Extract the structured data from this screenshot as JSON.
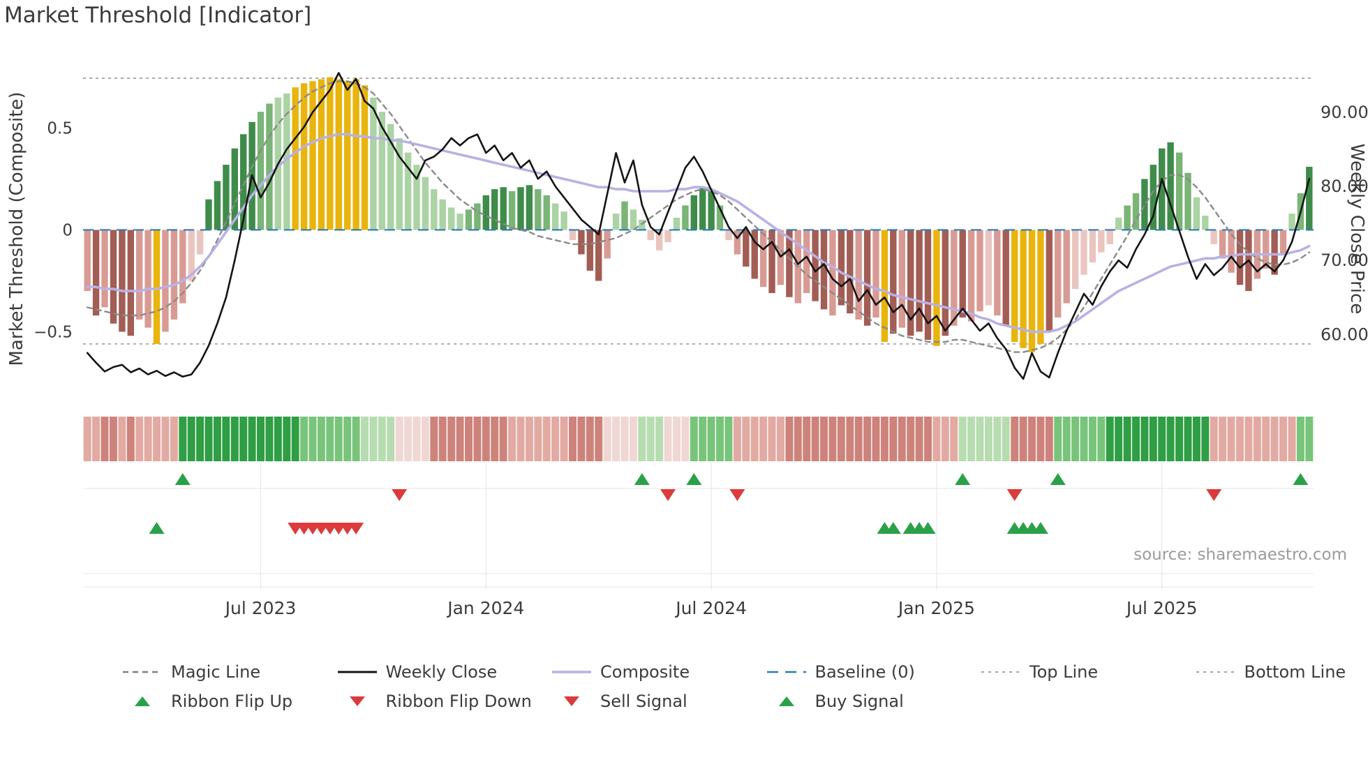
{
  "title": "Market Threshold [Indicator]",
  "source": "source: sharemaestro.com",
  "axes": {
    "left_label": "Market Threshold (Composite)",
    "right_label": "Weekly Close Price",
    "left_ticks": [
      {
        "value": 0.5,
        "label": "0.5"
      },
      {
        "value": 0.0,
        "label": "0"
      },
      {
        "value": -0.5,
        "label": "−0.5"
      }
    ],
    "right_ticks": [
      {
        "value": 90,
        "label": "90.00"
      },
      {
        "value": 80,
        "label": "80.00"
      },
      {
        "value": 70,
        "label": "70.00"
      },
      {
        "value": 60,
        "label": "60.00"
      }
    ]
  },
  "chart_data": {
    "type": "bar",
    "subtype": "weekly composite-indicator histogram with overlay lines, ribbon heatmap row and signal-marker rows",
    "title": "Market Threshold [Indicator]",
    "n_weeks": 142,
    "ylim_left": [
      -0.79,
      0.8
    ],
    "ylim_right": [
      52.4,
      96.1
    ],
    "baseline": 0,
    "top_line": 0.745,
    "bottom_line": -0.56,
    "x_ticks": [
      {
        "index": 20,
        "label": "Jul 2023"
      },
      {
        "index": 46,
        "label": "Jan 2024"
      },
      {
        "index": 72,
        "label": "Jul 2024"
      },
      {
        "index": 98,
        "label": "Jan 2025"
      },
      {
        "index": 124,
        "label": "Jul 2025"
      }
    ],
    "histogram": {
      "values": [
        -0.3,
        -0.42,
        -0.38,
        -0.46,
        -0.5,
        -0.52,
        -0.44,
        -0.48,
        -0.56,
        -0.5,
        -0.44,
        -0.36,
        -0.25,
        -0.12,
        0.15,
        0.24,
        0.32,
        0.4,
        0.47,
        0.53,
        0.58,
        0.62,
        0.65,
        0.67,
        0.7,
        0.72,
        0.73,
        0.74,
        0.75,
        0.74,
        0.73,
        0.74,
        0.71,
        0.65,
        0.58,
        0.52,
        0.45,
        0.38,
        0.32,
        0.26,
        0.2,
        0.15,
        0.11,
        0.08,
        0.1,
        0.13,
        0.17,
        0.2,
        0.21,
        0.19,
        0.21,
        0.22,
        0.2,
        0.17,
        0.13,
        0.09,
        -0.05,
        -0.12,
        -0.2,
        -0.25,
        -0.14,
        0.08,
        0.14,
        0.1,
        0.05,
        -0.05,
        -0.1,
        -0.06,
        0.06,
        0.12,
        0.17,
        0.21,
        0.19,
        0.12,
        -0.05,
        -0.12,
        -0.18,
        -0.24,
        -0.28,
        -0.31,
        -0.27,
        -0.33,
        -0.36,
        -0.31,
        -0.35,
        -0.39,
        -0.42,
        -0.37,
        -0.41,
        -0.44,
        -0.47,
        -0.43,
        -0.55,
        -0.51,
        -0.48,
        -0.52,
        -0.5,
        -0.54,
        -0.57,
        -0.52,
        -0.47,
        -0.43,
        -0.45,
        -0.4,
        -0.37,
        -0.42,
        -0.47,
        -0.55,
        -0.58,
        -0.6,
        -0.56,
        -0.5,
        -0.43,
        -0.36,
        -0.29,
        -0.22,
        -0.16,
        -0.11,
        -0.07,
        0.06,
        0.12,
        0.18,
        0.25,
        0.32,
        0.4,
        0.43,
        0.38,
        0.28,
        0.16,
        0.07,
        -0.07,
        -0.14,
        -0.21,
        -0.27,
        -0.3,
        -0.24,
        -0.19,
        -0.22,
        -0.12,
        0.08,
        0.18,
        0.31
      ],
      "colors": [
        "r1",
        "r2",
        "r1",
        "r2",
        "r2",
        "r2",
        "r1",
        "r1",
        "y",
        "r1",
        "r1",
        "r1",
        "r0",
        "r0",
        "g2",
        "g2",
        "g2",
        "g2",
        "g2",
        "g2",
        "g1",
        "g1",
        "g0",
        "g0",
        "y",
        "y",
        "y",
        "y",
        "y",
        "y",
        "y",
        "y",
        "y",
        "g0",
        "g0",
        "g0",
        "g0",
        "g0",
        "g0",
        "g0",
        "g0",
        "g0",
        "g0",
        "g0",
        "g1",
        "g1",
        "g2",
        "g2",
        "g2",
        "g1",
        "g2",
        "g2",
        "g1",
        "g1",
        "g0",
        "g0",
        "r0",
        "r2",
        "r2",
        "r2",
        "r1",
        "g0",
        "g1",
        "g0",
        "g0",
        "r0",
        "r0",
        "r0",
        "g0",
        "g1",
        "g2",
        "g2",
        "g2",
        "g1",
        "r0",
        "r1",
        "r2",
        "r2",
        "r1",
        "r2",
        "r1",
        "r2",
        "r1",
        "r1",
        "r2",
        "r2",
        "r1",
        "r2",
        "r2",
        "r1",
        "r2",
        "r1",
        "y",
        "r2",
        "r1",
        "r2",
        "r2",
        "r2",
        "y",
        "r2",
        "r1",
        "r2",
        "r1",
        "r1",
        "r0",
        "r1",
        "r2",
        "y",
        "y",
        "y",
        "y",
        "r2",
        "r1",
        "r1",
        "r0",
        "r0",
        "r0",
        "r0",
        "r0",
        "g0",
        "g1",
        "g1",
        "g2",
        "g2",
        "g2",
        "g2",
        "g1",
        "g1",
        "g0",
        "g0",
        "r0",
        "r1",
        "r1",
        "r2",
        "r2",
        "r1",
        "r1",
        "r2",
        "r1",
        "g0",
        "g1",
        "g2"
      ]
    },
    "series": [
      {
        "name": "Weekly Close",
        "axis": "right",
        "values": [
          57.5,
          56.2,
          55.0,
          55.6,
          55.9,
          54.9,
          55.4,
          54.6,
          55.1,
          54.4,
          54.9,
          54.3,
          54.6,
          56.2,
          58.5,
          61.5,
          65.0,
          70.0,
          75.5,
          81.5,
          78.5,
          80.5,
          83.0,
          85.0,
          86.5,
          88.0,
          90.0,
          91.5,
          93.0,
          95.3,
          93.0,
          94.5,
          91.5,
          90.5,
          88.0,
          86.0,
          84.0,
          82.5,
          81.0,
          83.5,
          84.0,
          85.0,
          86.5,
          85.5,
          86.5,
          87.0,
          84.5,
          85.5,
          83.5,
          84.5,
          82.5,
          83.5,
          81.0,
          82.0,
          80.0,
          78.5,
          77.0,
          75.5,
          74.5,
          73.5,
          79.0,
          84.5,
          80.5,
          83.5,
          77.5,
          74.5,
          73.5,
          76.5,
          79.5,
          82.5,
          84.0,
          82.0,
          79.5,
          77.0,
          74.5,
          73.0,
          74.5,
          72.5,
          71.5,
          72.5,
          70.5,
          71.5,
          69.5,
          70.5,
          68.5,
          69.5,
          67.5,
          66.5,
          67.5,
          64.5,
          66.0,
          64.0,
          65.0,
          63.0,
          64.0,
          62.0,
          63.5,
          61.5,
          62.5,
          60.5,
          62.0,
          63.5,
          62.0,
          60.5,
          61.5,
          59.5,
          58.0,
          55.5,
          54.0,
          57.5,
          55.0,
          54.2,
          57.5,
          60.5,
          63.0,
          65.5,
          64.0,
          66.5,
          68.5,
          70.0,
          69.0,
          71.5,
          73.5,
          76.0,
          81.0,
          77.5,
          74.0,
          70.5,
          67.5,
          69.5,
          68.0,
          69.0,
          70.5,
          69.0,
          70.0,
          68.5,
          69.5,
          68.5,
          70.0,
          72.5,
          76.5,
          81.0
        ]
      },
      {
        "name": "Composite",
        "axis": "left",
        "values": [
          -0.28,
          -0.28,
          -0.29,
          -0.29,
          -0.3,
          -0.3,
          -0.3,
          -0.29,
          -0.29,
          -0.28,
          -0.27,
          -0.25,
          -0.22,
          -0.18,
          -0.13,
          -0.07,
          -0.01,
          0.05,
          0.11,
          0.17,
          0.22,
          0.27,
          0.31,
          0.35,
          0.38,
          0.41,
          0.43,
          0.45,
          0.46,
          0.47,
          0.47,
          0.46,
          0.46,
          0.45,
          0.45,
          0.44,
          0.44,
          0.43,
          0.42,
          0.41,
          0.4,
          0.39,
          0.38,
          0.37,
          0.36,
          0.35,
          0.34,
          0.33,
          0.32,
          0.31,
          0.3,
          0.29,
          0.28,
          0.27,
          0.26,
          0.25,
          0.24,
          0.23,
          0.22,
          0.21,
          0.21,
          0.2,
          0.2,
          0.19,
          0.19,
          0.19,
          0.19,
          0.19,
          0.2,
          0.2,
          0.21,
          0.21,
          0.2,
          0.18,
          0.16,
          0.14,
          0.11,
          0.08,
          0.05,
          0.02,
          -0.01,
          -0.04,
          -0.07,
          -0.1,
          -0.13,
          -0.16,
          -0.18,
          -0.21,
          -0.23,
          -0.25,
          -0.27,
          -0.29,
          -0.3,
          -0.32,
          -0.33,
          -0.34,
          -0.35,
          -0.36,
          -0.37,
          -0.38,
          -0.39,
          -0.4,
          -0.41,
          -0.43,
          -0.44,
          -0.46,
          -0.47,
          -0.48,
          -0.49,
          -0.5,
          -0.5,
          -0.5,
          -0.49,
          -0.47,
          -0.45,
          -0.42,
          -0.39,
          -0.36,
          -0.33,
          -0.3,
          -0.28,
          -0.26,
          -0.24,
          -0.22,
          -0.2,
          -0.18,
          -0.17,
          -0.16,
          -0.15,
          -0.14,
          -0.14,
          -0.13,
          -0.13,
          -0.12,
          -0.12,
          -0.12,
          -0.12,
          -0.12,
          -0.12,
          -0.11,
          -0.1,
          -0.08
        ]
      },
      {
        "name": "Magic Line",
        "axis": "left",
        "values": [
          -0.38,
          -0.39,
          -0.4,
          -0.41,
          -0.42,
          -0.42,
          -0.42,
          -0.41,
          -0.4,
          -0.38,
          -0.35,
          -0.31,
          -0.26,
          -0.2,
          -0.13,
          -0.05,
          0.04,
          0.13,
          0.22,
          0.31,
          0.39,
          0.46,
          0.52,
          0.57,
          0.61,
          0.65,
          0.68,
          0.7,
          0.72,
          0.73,
          0.73,
          0.72,
          0.7,
          0.67,
          0.62,
          0.57,
          0.51,
          0.45,
          0.39,
          0.33,
          0.28,
          0.23,
          0.19,
          0.15,
          0.12,
          0.09,
          0.07,
          0.05,
          0.03,
          0.01,
          0.0,
          -0.01,
          -0.03,
          -0.04,
          -0.05,
          -0.06,
          -0.07,
          -0.07,
          -0.07,
          -0.06,
          -0.05,
          -0.04,
          -0.02,
          0.0,
          0.03,
          0.06,
          0.09,
          0.12,
          0.15,
          0.17,
          0.19,
          0.2,
          0.19,
          0.17,
          0.14,
          0.1,
          0.06,
          0.02,
          -0.02,
          -0.06,
          -0.1,
          -0.14,
          -0.18,
          -0.22,
          -0.25,
          -0.28,
          -0.31,
          -0.34,
          -0.37,
          -0.4,
          -0.43,
          -0.46,
          -0.48,
          -0.5,
          -0.52,
          -0.53,
          -0.54,
          -0.55,
          -0.55,
          -0.55,
          -0.54,
          -0.54,
          -0.55,
          -0.56,
          -0.57,
          -0.58,
          -0.59,
          -0.6,
          -0.6,
          -0.59,
          -0.58,
          -0.56,
          -0.53,
          -0.49,
          -0.44,
          -0.38,
          -0.31,
          -0.24,
          -0.17,
          -0.1,
          -0.03,
          0.05,
          0.12,
          0.19,
          0.24,
          0.27,
          0.27,
          0.25,
          0.21,
          0.16,
          0.1,
          0.04,
          -0.02,
          -0.07,
          -0.11,
          -0.14,
          -0.16,
          -0.17,
          -0.17,
          -0.16,
          -0.14,
          -0.11
        ]
      }
    ],
    "ribbon": [
      "r1",
      "r1",
      "r2",
      "r2",
      "r1",
      "r2",
      "r1",
      "r1",
      "r1",
      "r1",
      "r1",
      "g2",
      "g2",
      "g2",
      "g2",
      "g2",
      "g2",
      "g2",
      "g2",
      "g2",
      "g2",
      "g2",
      "g2",
      "g2",
      "g2",
      "g1",
      "g1",
      "g1",
      "g1",
      "g1",
      "g1",
      "g1",
      "g0",
      "g0",
      "g0",
      "g0",
      "r0",
      "r0",
      "r0",
      "r0",
      "r2",
      "r2",
      "r2",
      "r2",
      "r2",
      "r2",
      "r2",
      "r2",
      "r2",
      "r1",
      "r1",
      "r1",
      "r1",
      "r1",
      "r1",
      "r1",
      "r2",
      "r2",
      "r2",
      "r2",
      "r0",
      "r0",
      "r0",
      "r0",
      "g0",
      "g0",
      "g0",
      "r0",
      "r0",
      "r0",
      "g1",
      "g1",
      "g1",
      "g1",
      "g1",
      "r1",
      "r1",
      "r1",
      "r1",
      "r1",
      "r1",
      "r2",
      "r2",
      "r2",
      "r2",
      "r2",
      "r2",
      "r2",
      "r2",
      "r2",
      "r2",
      "r2",
      "r2",
      "r2",
      "r2",
      "r2",
      "r2",
      "r2",
      "r1",
      "r1",
      "r1",
      "g0",
      "g0",
      "g0",
      "g0",
      "g0",
      "g0",
      "r2",
      "r2",
      "r2",
      "r2",
      "r2",
      "g1",
      "g1",
      "g1",
      "g1",
      "g1",
      "g1",
      "g2",
      "g2",
      "g2",
      "g2",
      "g2",
      "g2",
      "g2",
      "g2",
      "g2",
      "g2",
      "g2",
      "g2",
      "r1",
      "r1",
      "r1",
      "r1",
      "r1",
      "r1",
      "r1",
      "r1",
      "r1",
      "r1",
      "g1",
      "g1"
    ],
    "signals": {
      "ribbon_flip_up_weeks": [
        11,
        64,
        70,
        101,
        112,
        140
      ],
      "ribbon_flip_down_weeks": [
        36,
        67,
        75,
        107,
        130
      ],
      "buy_signal_weeks": [
        8,
        92,
        93,
        95,
        96,
        97,
        107,
        108,
        109,
        110
      ],
      "sell_signal_weeks": [
        24,
        25,
        26,
        27,
        28,
        29,
        30,
        31
      ]
    }
  },
  "legend": {
    "rows": [
      [
        {
          "label": "Magic Line",
          "style": "dash-gray"
        },
        {
          "label": "Weekly Close",
          "style": "solid-black"
        },
        {
          "label": "Composite",
          "style": "solid-purple"
        },
        {
          "label": "Baseline (0)",
          "style": "dash-blue"
        },
        {
          "label": "Top Line",
          "style": "dot-gray"
        },
        {
          "label": "Bottom Line",
          "style": "dot-gray"
        }
      ],
      [
        {
          "label": "Ribbon Flip Up",
          "style": "tri-up"
        },
        {
          "label": "Ribbon Flip Down",
          "style": "tri-down"
        },
        {
          "label": "Sell Signal",
          "style": "tri-down"
        },
        {
          "label": "Buy Signal",
          "style": "tri-up"
        }
      ]
    ]
  },
  "colors": {
    "bar": {
      "g2": "#3f8c4a",
      "g1": "#7ab476",
      "g0": "#abd3a4",
      "y": "#e9b40c",
      "r0": "#eac5c0",
      "r1": "#d89b94",
      "r2": "#a25d55"
    },
    "ribbon": {
      "g2": "#2f9e44",
      "g1": "#79c47b",
      "g0": "#b8dcb1",
      "r0": "#f0d7d3",
      "r1": "#e2aaa2",
      "r2": "#cd837b"
    },
    "weekly_close": "#141414",
    "composite": "#b9b1e3",
    "magic_line": "#8a8a8a",
    "baseline": "#2d7bb6",
    "reference": "#979797",
    "signal_green": "#2aa148",
    "signal_red": "#dc3b3b",
    "grid": "#e4e4e4",
    "text": "#3b3b3b"
  }
}
